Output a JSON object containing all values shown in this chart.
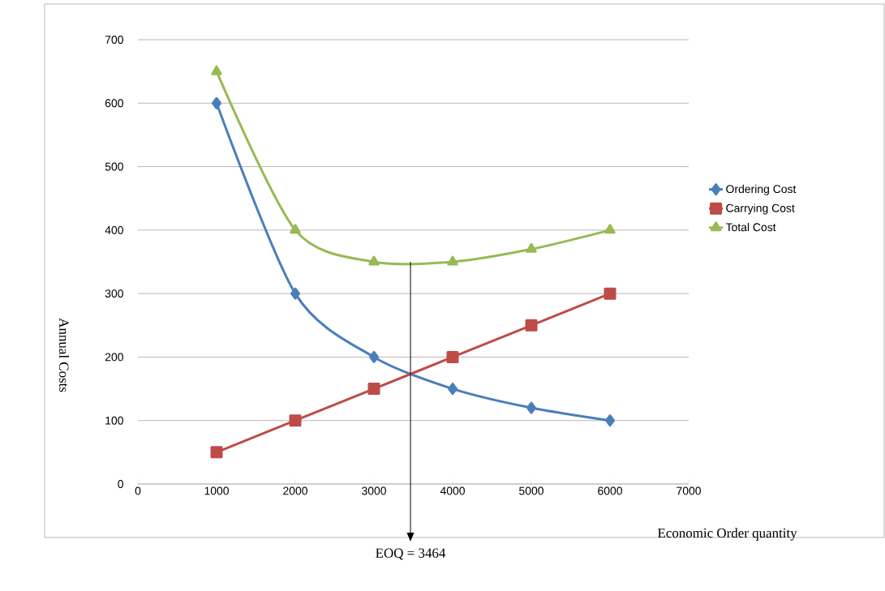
{
  "chart_data": {
    "type": "line",
    "xlabel": "Economic Order quantity",
    "ylabel": "Annual Costs",
    "x": [
      1000,
      2000,
      3000,
      4000,
      5000,
      6000
    ],
    "series": [
      {
        "name": "Ordering Cost",
        "color": "#4a7ebb",
        "marker": "diamond",
        "values": [
          600,
          300,
          200,
          150,
          120,
          100
        ]
      },
      {
        "name": "Carrying Cost",
        "color": "#be4b48",
        "marker": "square",
        "values": [
          50,
          100,
          150,
          200,
          250,
          300
        ]
      },
      {
        "name": "Total Cost",
        "color": "#98b954",
        "marker": "triangle",
        "values": [
          650,
          400,
          350,
          350,
          370,
          400
        ]
      }
    ],
    "xlim": [
      0,
      7000
    ],
    "xticks": [
      0,
      1000,
      2000,
      3000,
      4000,
      5000,
      6000,
      7000
    ],
    "ylim": [
      0,
      700
    ],
    "yticks": [
      0,
      100,
      200,
      300,
      400,
      500,
      600,
      700
    ],
    "grid": "y",
    "legend": "right",
    "ref_lines": [
      {
        "axis": "x",
        "value": 3464,
        "label": "EOQ = 3464",
        "color": "#000000"
      }
    ]
  }
}
